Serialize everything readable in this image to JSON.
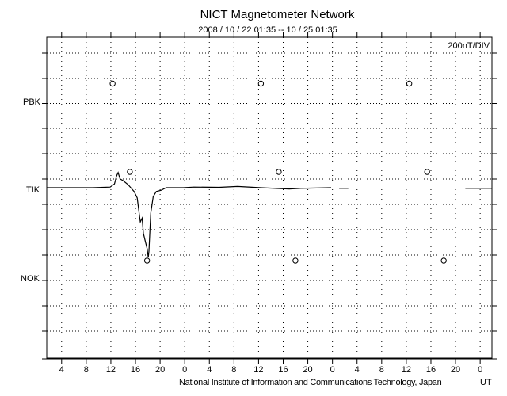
{
  "chart_data": {
    "type": "line",
    "title": "NICT Magnetometer Network",
    "subtitle": "2008 / 10 / 22   01:35 -- 10 / 25   01:35",
    "scale_label": "200nT/DIV",
    "scale_nT_per_div": 200,
    "xlabel": "UT",
    "x_unit": "hours since 2008/10/22 01:35",
    "xlim": [
      0,
      72
    ],
    "x_tick_labels": [
      "4",
      "8",
      "12",
      "16",
      "20",
      "0",
      "4",
      "8",
      "12",
      "16",
      "20",
      "0",
      "4",
      "8",
      "12",
      "16",
      "20",
      "0"
    ],
    "stations": [
      "PBK",
      "TIK",
      "NOK"
    ],
    "series": [
      {
        "name": "PBK",
        "points": []
      },
      {
        "name": "TIK",
        "points": [
          [
            0,
            0
          ],
          [
            7.5,
            0
          ],
          [
            10.3,
            5
          ],
          [
            11,
            30
          ],
          [
            11.35,
            94
          ],
          [
            11.6,
            120
          ],
          [
            11.9,
            70
          ],
          [
            12.4,
            56
          ],
          [
            13.2,
            25
          ],
          [
            14.2,
            -30
          ],
          [
            14.7,
            -80
          ],
          [
            15,
            -200
          ],
          [
            15.2,
            -270
          ],
          [
            15.5,
            -240
          ],
          [
            15.7,
            -360
          ],
          [
            16,
            -420
          ],
          [
            16.3,
            -480
          ],
          [
            16.5,
            -550
          ],
          [
            16.6,
            -500
          ],
          [
            16.9,
            -200
          ],
          [
            17.3,
            -70
          ],
          [
            17.8,
            -30
          ],
          [
            18.6,
            -20
          ],
          [
            19.4,
            0
          ],
          [
            22.2,
            0
          ],
          [
            23.9,
            5
          ],
          [
            28,
            3
          ],
          [
            31,
            10
          ],
          [
            34.8,
            0
          ],
          [
            39.4,
            -10
          ],
          [
            41.3,
            -5
          ],
          [
            46.2,
            0
          ],
          null,
          [
            47.5,
            -5
          ],
          [
            49,
            -5
          ],
          null,
          [
            68,
            -5
          ],
          [
            72.3,
            -5
          ]
        ]
      },
      {
        "name": "NOK",
        "points": []
      }
    ],
    "midnight_markers": {
      "PBK": [
        10.7,
        34.8,
        58.9
      ],
      "TIK": [
        13.5,
        37.7,
        61.8
      ],
      "NOK": [
        16.3,
        40.4,
        64.5
      ]
    },
    "grid": true
  },
  "footer": {
    "credit": "National Institute of Information and Communications Technology, Japan"
  }
}
